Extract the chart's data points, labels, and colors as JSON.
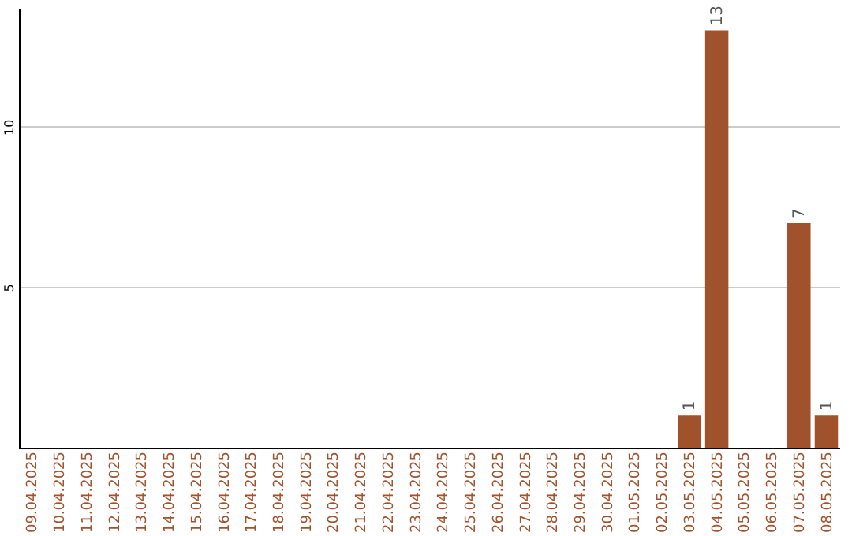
{
  "chart_data": {
    "type": "bar",
    "categories": [
      "09.04.2025",
      "10.04.2025",
      "11.04.2025",
      "12.04.2025",
      "13.04.2025",
      "14.04.2025",
      "15.04.2025",
      "16.04.2025",
      "17.04.2025",
      "18.04.2025",
      "19.04.2025",
      "20.04.2025",
      "21.04.2025",
      "22.04.2025",
      "23.04.2025",
      "24.04.2025",
      "25.04.2025",
      "26.04.2025",
      "27.04.2025",
      "28.04.2025",
      "29.04.2025",
      "30.04.2025",
      "01.05.2025",
      "02.05.2025",
      "03.05.2025",
      "04.05.2025",
      "05.05.2025",
      "06.05.2025",
      "07.05.2025",
      "08.05.2025"
    ],
    "values": [
      0,
      0,
      0,
      0,
      0,
      0,
      0,
      0,
      0,
      0,
      0,
      0,
      0,
      0,
      0,
      0,
      0,
      0,
      0,
      0,
      0,
      0,
      0,
      0,
      1,
      13,
      0,
      0,
      7,
      1
    ],
    "value_labels": [
      null,
      null,
      null,
      null,
      null,
      null,
      null,
      null,
      null,
      null,
      null,
      null,
      null,
      null,
      null,
      null,
      null,
      null,
      null,
      null,
      null,
      null,
      null,
      null,
      "1",
      "13",
      null,
      null,
      "7",
      "1"
    ],
    "color": "#a0522d",
    "ylim": [
      0,
      13.7
    ],
    "yticks": [
      5,
      10
    ],
    "grid": "y"
  }
}
